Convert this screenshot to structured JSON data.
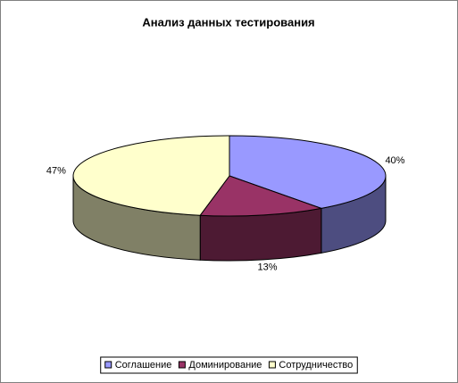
{
  "chart_data": {
    "type": "pie3d",
    "title": "Анализ данных тестирования",
    "categories": [
      "Соглашение",
      "Доминирование",
      "Сотрудничество"
    ],
    "values": [
      40,
      13,
      47
    ],
    "value_labels": [
      "40%",
      "13%",
      "47%"
    ],
    "colors": [
      "#9999ff",
      "#993366",
      "#ffffcc"
    ],
    "legend": "bottom"
  }
}
